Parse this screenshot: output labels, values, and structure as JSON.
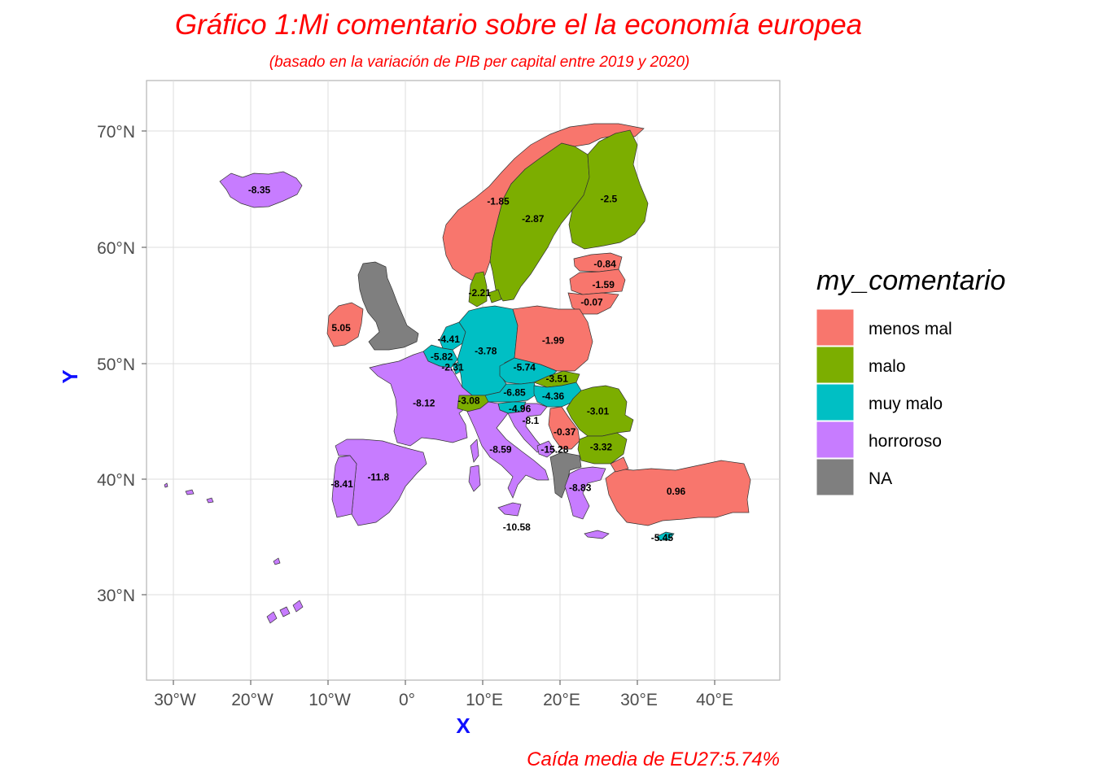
{
  "title": "Gráfico 1:Mi comentario sobre el la economía europea",
  "subtitle": "(basado en la variación de PIB per capital entre 2019 y 2020)",
  "caption": "Caída media de EU27:5.74%",
  "axes": {
    "xlabel": "X",
    "ylabel": "Y",
    "x_ticks": [
      "30°W",
      "20°W",
      "10°W",
      "0°",
      "10°E",
      "20°E",
      "30°E",
      "40°E"
    ],
    "y_ticks": [
      "70°N",
      "60°N",
      "50°N",
      "40°N",
      "30°N"
    ],
    "xlim": [
      -33.5,
      48.5
    ],
    "ylim": [
      23.5,
      75.2
    ],
    "grid": true
  },
  "legend": {
    "title": "my_comentario",
    "placement": "right",
    "items": [
      {
        "label": "menos mal",
        "color": "#F8766D"
      },
      {
        "label": "malo",
        "color": "#7CAE00"
      },
      {
        "label": "muy malo",
        "color": "#00BFC4"
      },
      {
        "label": "horroroso",
        "color": "#C77CFF"
      },
      {
        "label": "NA",
        "color": "#7F7F7F"
      }
    ]
  },
  "chart_data": {
    "type": "choropleth",
    "value_unit": "variación PIB per cápita 2019-2020 (%)",
    "regions": [
      {
        "value": "-8.35",
        "category": "horroroso",
        "lon": -18.9,
        "lat": 65.0
      },
      {
        "value": "-1.85",
        "category": "menos mal",
        "lon": 12.0,
        "lat": 64.0
      },
      {
        "value": "-2.87",
        "category": "malo",
        "lon": 16.5,
        "lat": 62.5
      },
      {
        "value": "-2.5",
        "category": "malo",
        "lon": 26.3,
        "lat": 64.2
      },
      {
        "value": "-0.84",
        "category": "menos mal",
        "lon": 25.8,
        "lat": 58.6
      },
      {
        "value": "-1.59",
        "category": "menos mal",
        "lon": 25.6,
        "lat": 56.8
      },
      {
        "value": "-0.07",
        "category": "menos mal",
        "lon": 24.1,
        "lat": 55.3
      },
      {
        "value": "-2.21",
        "category": "malo",
        "lon": 9.6,
        "lat": 56.1
      },
      {
        "value": "5.05",
        "category": "menos mal",
        "lon": -8.3,
        "lat": 53.1
      },
      {
        "value": "-4.41",
        "category": "muy malo",
        "lon": 5.6,
        "lat": 52.1
      },
      {
        "value": "-5.82",
        "category": "muy malo",
        "lon": 4.7,
        "lat": 50.6
      },
      {
        "value": "-2.31",
        "category": "muy malo",
        "lon": 6.1,
        "lat": 49.7
      },
      {
        "value": "-3.78",
        "category": "muy malo",
        "lon": 10.4,
        "lat": 51.1
      },
      {
        "value": "-1.99",
        "category": "menos mal",
        "lon": 19.1,
        "lat": 52.0
      },
      {
        "value": "-5.74",
        "category": "muy malo",
        "lon": 15.4,
        "lat": 49.7
      },
      {
        "value": "-3.51",
        "category": "malo",
        "lon": 19.6,
        "lat": 48.7
      },
      {
        "value": "-8.12",
        "category": "horroroso",
        "lon": 2.4,
        "lat": 46.6
      },
      {
        "value": "-3.08",
        "category": "malo",
        "lon": 8.2,
        "lat": 46.8
      },
      {
        "value": "-6.85",
        "category": "muy malo",
        "lon": 14.1,
        "lat": 47.5
      },
      {
        "value": "-4.36",
        "category": "muy malo",
        "lon": 19.1,
        "lat": 47.2
      },
      {
        "value": "-4.96",
        "category": "muy malo",
        "lon": 14.8,
        "lat": 46.1
      },
      {
        "value": "-3.01",
        "category": "malo",
        "lon": 24.9,
        "lat": 45.9
      },
      {
        "value": "-8.1",
        "category": "horroroso",
        "lon": 16.2,
        "lat": 45.1
      },
      {
        "value": "-0.37",
        "category": "menos mal",
        "lon": 20.6,
        "lat": 44.1
      },
      {
        "value": "-8.59",
        "category": "horroroso",
        "lon": 12.3,
        "lat": 42.6
      },
      {
        "value": "-15.28",
        "category": "horroroso",
        "lon": 19.3,
        "lat": 42.6
      },
      {
        "value": "-3.32",
        "category": "malo",
        "lon": 25.3,
        "lat": 42.8
      },
      {
        "value": "-11.8",
        "category": "horroroso",
        "lon": -3.5,
        "lat": 40.2
      },
      {
        "value": "-8.41",
        "category": "horroroso",
        "lon": -8.2,
        "lat": 39.6
      },
      {
        "value": "-8.83",
        "category": "horroroso",
        "lon": 22.6,
        "lat": 39.3
      },
      {
        "value": "0.96",
        "category": "menos mal",
        "lon": 35.0,
        "lat": 39.0
      },
      {
        "value": "-10.58",
        "category": "horroroso",
        "lon": 14.4,
        "lat": 35.9
      },
      {
        "value": "-5.45",
        "category": "muy malo",
        "lon": 33.2,
        "lat": 35.0
      }
    ]
  }
}
